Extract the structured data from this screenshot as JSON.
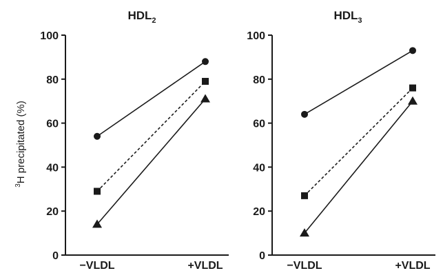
{
  "figure": {
    "ylabel_prefix": "3",
    "ylabel_text": "H precipitated (%)"
  },
  "chart_data": [
    {
      "type": "line",
      "title": "HDL",
      "title_subscript": "2",
      "xlabel": "",
      "ylabel": "3H precipitated (%)",
      "categories": [
        "−VLDL",
        "+VLDL"
      ],
      "ylim": [
        0,
        100
      ],
      "yticks": [
        0,
        20,
        40,
        60,
        80,
        100
      ],
      "grid": false,
      "series": [
        {
          "marker": "circle",
          "line_style": "solid",
          "line_weight": "thin",
          "values": [
            54,
            88
          ]
        },
        {
          "marker": "square",
          "line_style": "dashed",
          "line_weight": "thin",
          "values": [
            29,
            79
          ]
        },
        {
          "marker": "triangle",
          "line_style": "solid",
          "line_weight": "thick",
          "values": [
            14,
            71
          ]
        }
      ]
    },
    {
      "type": "line",
      "title": "HDL",
      "title_subscript": "3",
      "xlabel": "",
      "ylabel": "",
      "categories": [
        "−VLDL",
        "+VLDL"
      ],
      "ylim": [
        0,
        100
      ],
      "yticks": [
        0,
        20,
        40,
        60,
        80,
        100
      ],
      "grid": false,
      "series": [
        {
          "marker": "circle",
          "line_style": "solid",
          "line_weight": "thin",
          "values": [
            64,
            93
          ]
        },
        {
          "marker": "square",
          "line_style": "dashed",
          "line_weight": "thin",
          "values": [
            27,
            76
          ]
        },
        {
          "marker": "triangle",
          "line_style": "solid",
          "line_weight": "thick",
          "values": [
            10,
            70
          ]
        }
      ]
    }
  ]
}
